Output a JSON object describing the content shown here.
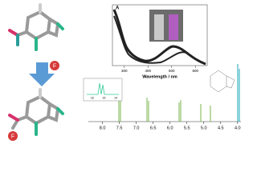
{
  "uv_panel": {
    "label": "A",
    "xlabel": "Wavelength / nm",
    "xlim": [
      250,
      650
    ],
    "xticks": [
      300,
      400,
      500,
      600
    ]
  },
  "nmr_panel": {
    "xlim": [
      8.3,
      3.9
    ],
    "xticks": [
      {
        "value": 8,
        "label": "8.0"
      },
      {
        "value": 7.5,
        "label": "7.5"
      },
      {
        "value": 7,
        "label": "7.0"
      },
      {
        "value": 6.5,
        "label": "6.5"
      },
      {
        "value": 6,
        "label": "6.0"
      },
      {
        "value": 5.5,
        "label": "5.5"
      },
      {
        "value": 5,
        "label": "5.0"
      },
      {
        "value": 4.5,
        "label": "4.5"
      },
      {
        "value": 4,
        "label": "4.0"
      }
    ],
    "inset_xlim": [
      16.6,
      13.6
    ],
    "inset_xticks": [
      16,
      15,
      14
    ]
  },
  "badges": [
    "F",
    "F"
  ]
}
